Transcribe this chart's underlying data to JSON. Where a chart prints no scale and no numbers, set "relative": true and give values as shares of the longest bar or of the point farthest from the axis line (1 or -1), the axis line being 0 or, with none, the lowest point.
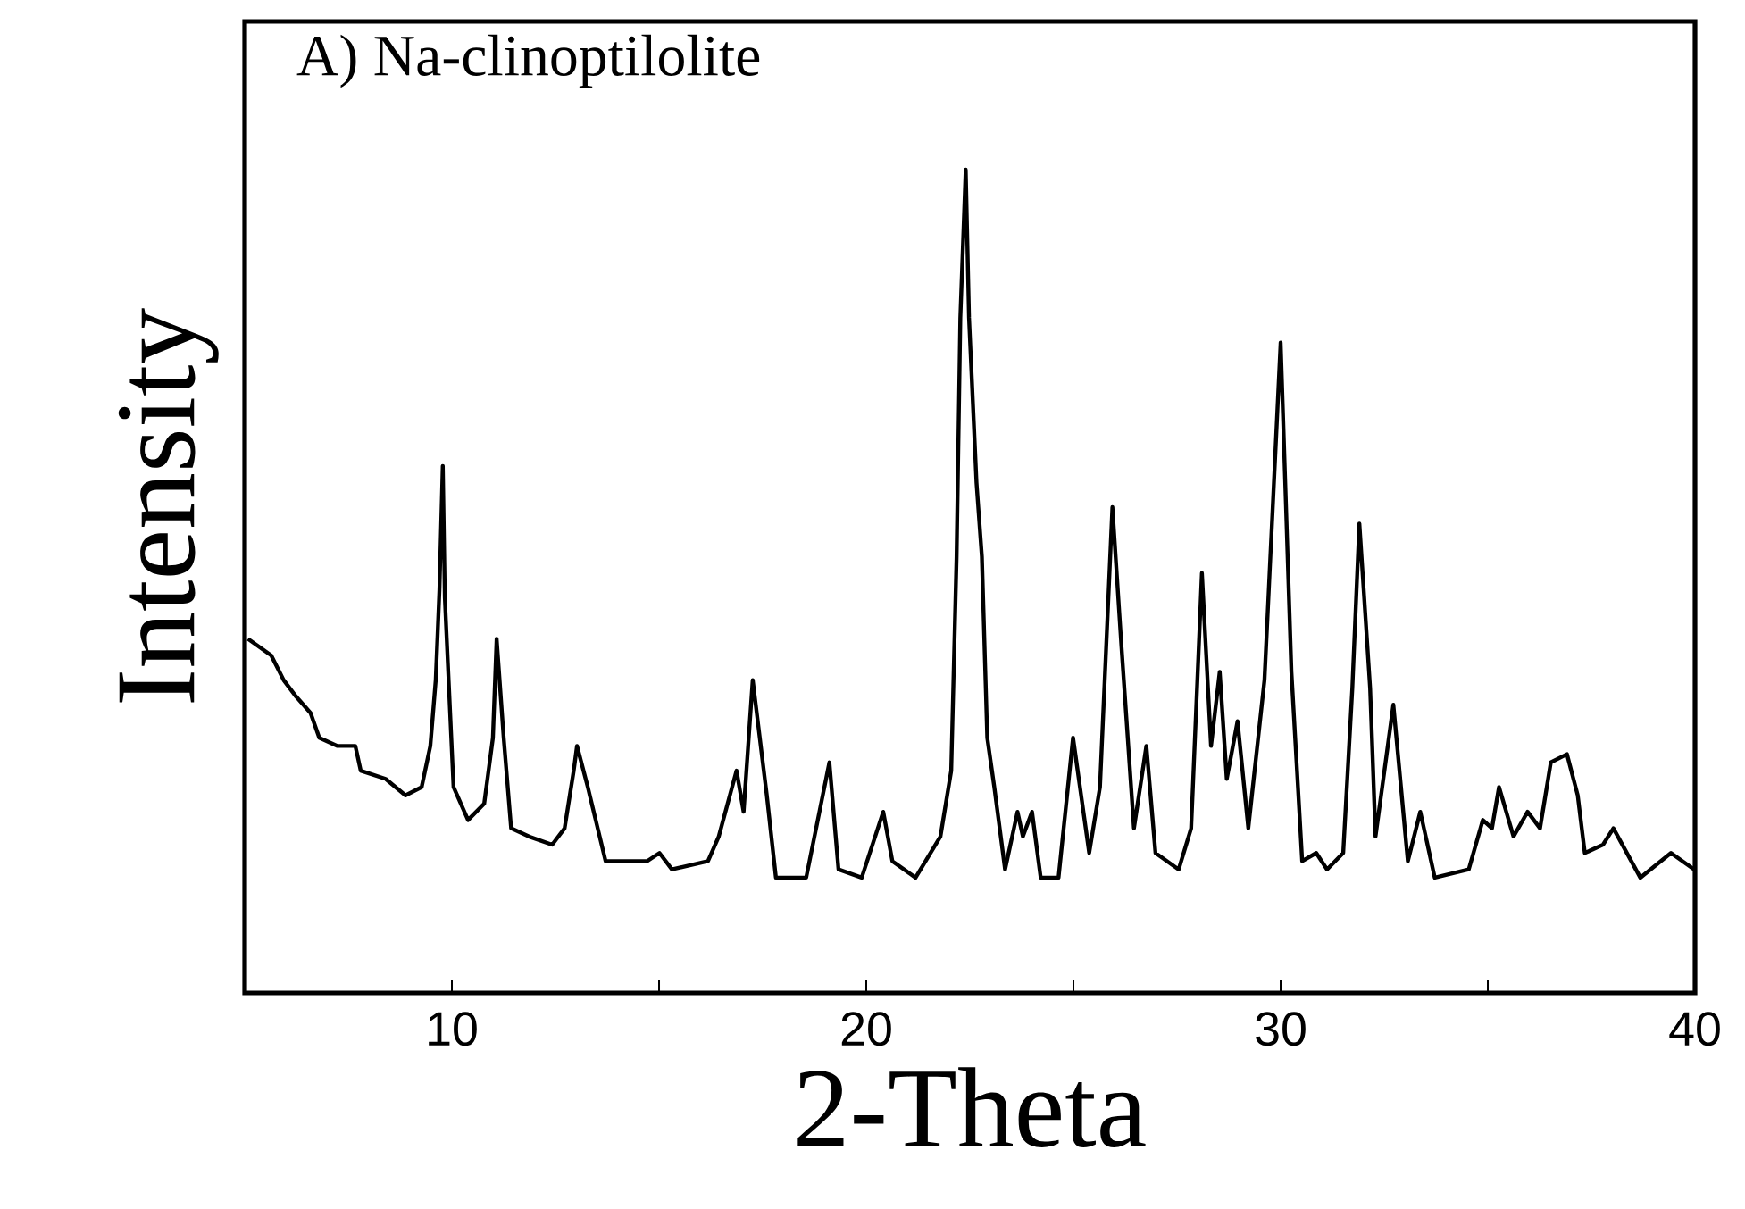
{
  "chart_data": {
    "type": "line",
    "title": "A) Na-clinoptilolite",
    "xlabel": "2-Theta",
    "ylabel": "Intensity",
    "relative": true,
    "xlim": [
      5,
      40
    ],
    "xticks": [
      10,
      {
        "value": 15,
        "label": null
      },
      20,
      {
        "value": 25,
        "label": null
      },
      30,
      {
        "value": 35,
        "label": null
      },
      40
    ],
    "series": [
      {
        "color": "#000000",
        "x": [
          5.08,
          5.64,
          5.94,
          6.24,
          6.59,
          6.8,
          7.24,
          7.67,
          7.8,
          8.4,
          8.88,
          9.27,
          9.48,
          9.61,
          9.7,
          9.78,
          9.83,
          10.04,
          10.39,
          10.78,
          10.99,
          11.08,
          11.25,
          11.43,
          11.86,
          12.42,
          12.72,
          12.94,
          13.02,
          13.28,
          13.71,
          14.71,
          15.01,
          15.31,
          16.18,
          16.44,
          16.87,
          17.04,
          17.26,
          17.6,
          17.82,
          18.55,
          19.11,
          19.33,
          19.89,
          20.41,
          20.63,
          21.19,
          21.79,
          22.05,
          22.18,
          22.27,
          22.4,
          22.48,
          22.66,
          22.79,
          22.92,
          23.09,
          23.35,
          23.65,
          23.78,
          24.0,
          24.21,
          24.64,
          24.99,
          25.38,
          25.64,
          25.94,
          26.16,
          26.46,
          26.76,
          26.98,
          27.54,
          27.84,
          28.1,
          28.32,
          28.53,
          28.7,
          28.96,
          29.22,
          29.61,
          30.0,
          30.26,
          30.52,
          30.86,
          31.12,
          31.51,
          31.73,
          31.9,
          32.16,
          32.29,
          32.72,
          33.07,
          33.37,
          33.72,
          34.54,
          34.88,
          35.1,
          35.27,
          35.62,
          35.96,
          36.26,
          36.52,
          36.91,
          37.17,
          37.34,
          37.78,
          38.03,
          38.68,
          39.42,
          39.98
        ],
        "values": [
          0.43,
          0.41,
          0.38,
          0.36,
          0.34,
          0.31,
          0.3,
          0.3,
          0.27,
          0.26,
          0.24,
          0.25,
          0.3,
          0.38,
          0.49,
          0.64,
          0.48,
          0.25,
          0.21,
          0.23,
          0.31,
          0.43,
          0.31,
          0.2,
          0.19,
          0.18,
          0.2,
          0.27,
          0.3,
          0.25,
          0.16,
          0.16,
          0.17,
          0.15,
          0.16,
          0.19,
          0.27,
          0.22,
          0.38,
          0.24,
          0.14,
          0.14,
          0.28,
          0.15,
          0.14,
          0.22,
          0.16,
          0.14,
          0.19,
          0.27,
          0.53,
          0.82,
          1.0,
          0.82,
          0.62,
          0.53,
          0.31,
          0.25,
          0.15,
          0.22,
          0.19,
          0.22,
          0.14,
          0.14,
          0.31,
          0.17,
          0.25,
          0.59,
          0.42,
          0.2,
          0.3,
          0.17,
          0.15,
          0.2,
          0.51,
          0.3,
          0.39,
          0.26,
          0.33,
          0.2,
          0.38,
          0.79,
          0.39,
          0.16,
          0.17,
          0.15,
          0.17,
          0.37,
          0.57,
          0.37,
          0.19,
          0.35,
          0.16,
          0.22,
          0.14,
          0.15,
          0.21,
          0.2,
          0.25,
          0.19,
          0.22,
          0.2,
          0.28,
          0.29,
          0.24,
          0.17,
          0.18,
          0.2,
          0.14,
          0.17,
          0.15
        ]
      }
    ]
  }
}
